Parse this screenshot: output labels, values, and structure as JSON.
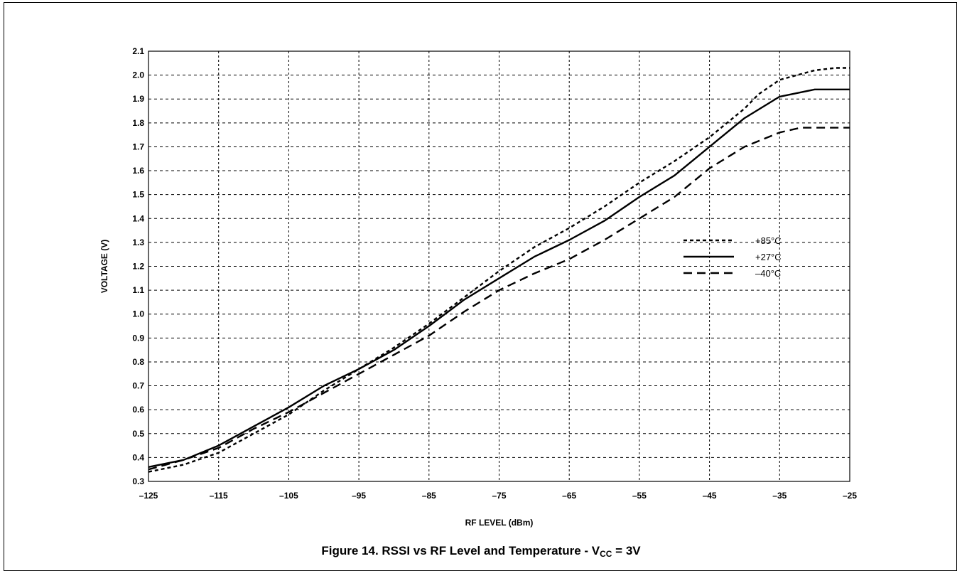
{
  "caption": {
    "prefix": "Figure 14.  RSSI vs RF Level and Temperature - V",
    "subscript": "CC",
    "suffix": " = 3V"
  },
  "chart_data": {
    "type": "line",
    "title": "",
    "xlabel": "RF LEVEL (dBm)",
    "ylabel": "VOLTAGE (V)",
    "xlim": [
      -125,
      -25
    ],
    "ylim": [
      0.3,
      2.1
    ],
    "x_ticks": [
      -125,
      -115,
      -105,
      -95,
      -85,
      -75,
      -65,
      -55,
      -45,
      -35,
      -25
    ],
    "x_tick_labels": [
      "–125",
      "–115",
      "–105",
      "–95",
      "–85",
      "–75",
      "–65",
      "–55",
      "–45",
      "–35",
      "–25"
    ],
    "y_ticks": [
      0.3,
      0.4,
      0.5,
      0.6,
      0.7,
      0.8,
      0.9,
      1.0,
      1.1,
      1.2,
      1.3,
      1.4,
      1.5,
      1.6,
      1.7,
      1.8,
      1.9,
      2.0,
      2.1
    ],
    "y_tick_labels": [
      "0.3",
      "0.4",
      "0.5",
      "0.6",
      "0.7",
      "0.8",
      "0.9",
      "1.0",
      "1.1",
      "1.2",
      "1.3",
      "1.4",
      "1.5",
      "1.6",
      "1.7",
      "1.8",
      "1.9",
      "2.0",
      "2.1"
    ],
    "grid": true,
    "legend_position": "right, upper-middle",
    "series": [
      {
        "name": "+85°C",
        "style": "dotted",
        "x": [
          -125,
          -120,
          -115,
          -110,
          -105,
          -100,
          -95,
          -90,
          -85,
          -80,
          -75,
          -70,
          -65,
          -60,
          -55,
          -50,
          -45,
          -40,
          -38,
          -35,
          -30,
          -27,
          -25
        ],
        "y": [
          0.34,
          0.37,
          0.42,
          0.5,
          0.58,
          0.68,
          0.77,
          0.86,
          0.96,
          1.07,
          1.18,
          1.28,
          1.36,
          1.45,
          1.55,
          1.64,
          1.74,
          1.86,
          1.92,
          1.98,
          2.02,
          2.03,
          2.03
        ]
      },
      {
        "name": "+27°C",
        "style": "solid",
        "x": [
          -125,
          -120,
          -115,
          -110,
          -105,
          -100,
          -95,
          -90,
          -85,
          -80,
          -75,
          -70,
          -65,
          -60,
          -55,
          -50,
          -45,
          -40,
          -35,
          -30,
          -28,
          -25
        ],
        "y": [
          0.36,
          0.39,
          0.45,
          0.53,
          0.61,
          0.7,
          0.77,
          0.85,
          0.95,
          1.06,
          1.15,
          1.24,
          1.31,
          1.39,
          1.49,
          1.58,
          1.7,
          1.82,
          1.91,
          1.94,
          1.94,
          1.94
        ]
      },
      {
        "name": "–40°C",
        "style": "dashed",
        "x": [
          -125,
          -120,
          -115,
          -110,
          -105,
          -100,
          -95,
          -90,
          -85,
          -80,
          -75,
          -70,
          -65,
          -60,
          -55,
          -50,
          -45,
          -40,
          -35,
          -32,
          -30,
          -25
        ],
        "y": [
          0.35,
          0.39,
          0.44,
          0.52,
          0.59,
          0.67,
          0.75,
          0.83,
          0.91,
          1.01,
          1.1,
          1.17,
          1.23,
          1.31,
          1.4,
          1.49,
          1.61,
          1.7,
          1.76,
          1.78,
          1.78,
          1.78
        ]
      }
    ]
  }
}
